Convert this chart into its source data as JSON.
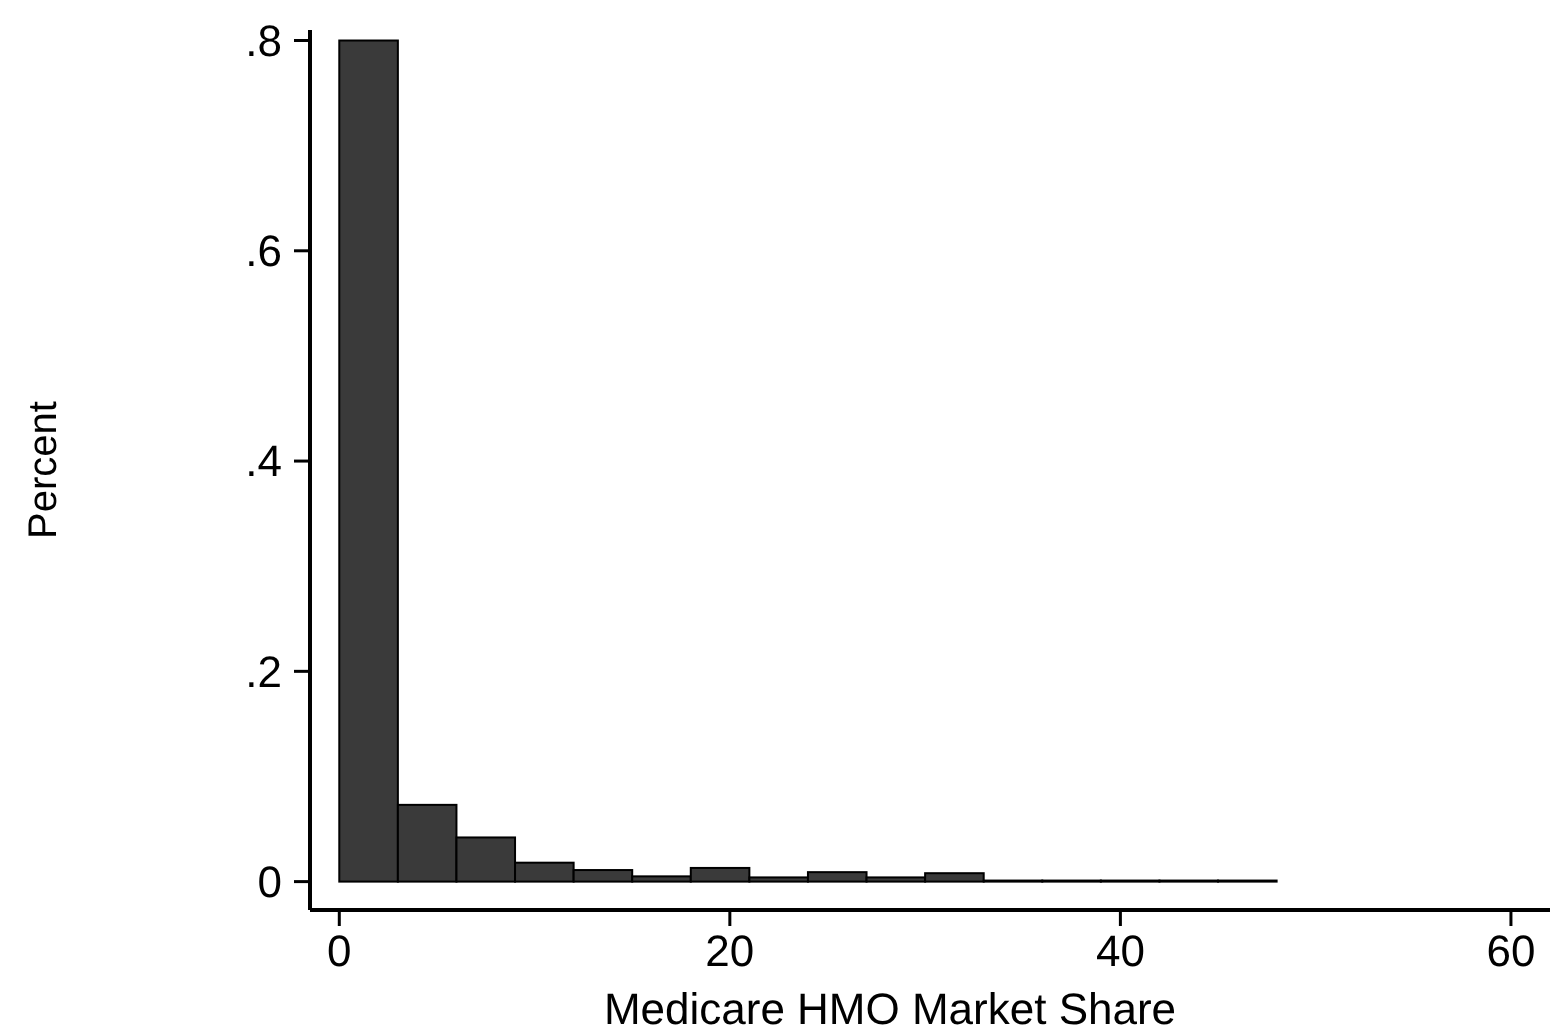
{
  "chart_data": {
    "type": "histogram",
    "xlabel": "Medicare HMO Market Share",
    "ylabel": "Percent",
    "bins": [
      0,
      3,
      6,
      9,
      12,
      15,
      18,
      21,
      24,
      27,
      30,
      33,
      36,
      39,
      42,
      45,
      48
    ],
    "values": [
      0.8,
      0.073,
      0.042,
      0.018,
      0.011,
      0.005,
      0.013,
      0.004,
      0.009,
      0.004,
      0.008,
      0.001,
      0.001,
      0.001,
      0.001,
      0.001
    ],
    "color": "#3a3a3a",
    "xlim": [
      -1.5,
      62
    ],
    "xticks": [
      0,
      20,
      40,
      60
    ],
    "ylim": [
      -0.027,
      0.81
    ],
    "yticks": [
      {
        "value": 0,
        "label": "0"
      },
      {
        "value": 0.2,
        "label": ".2"
      },
      {
        "value": 0.4,
        "label": ".4"
      },
      {
        "value": 0.6,
        "label": ".6"
      },
      {
        "value": 0.8,
        "label": ".8"
      }
    ],
    "grid": false
  }
}
